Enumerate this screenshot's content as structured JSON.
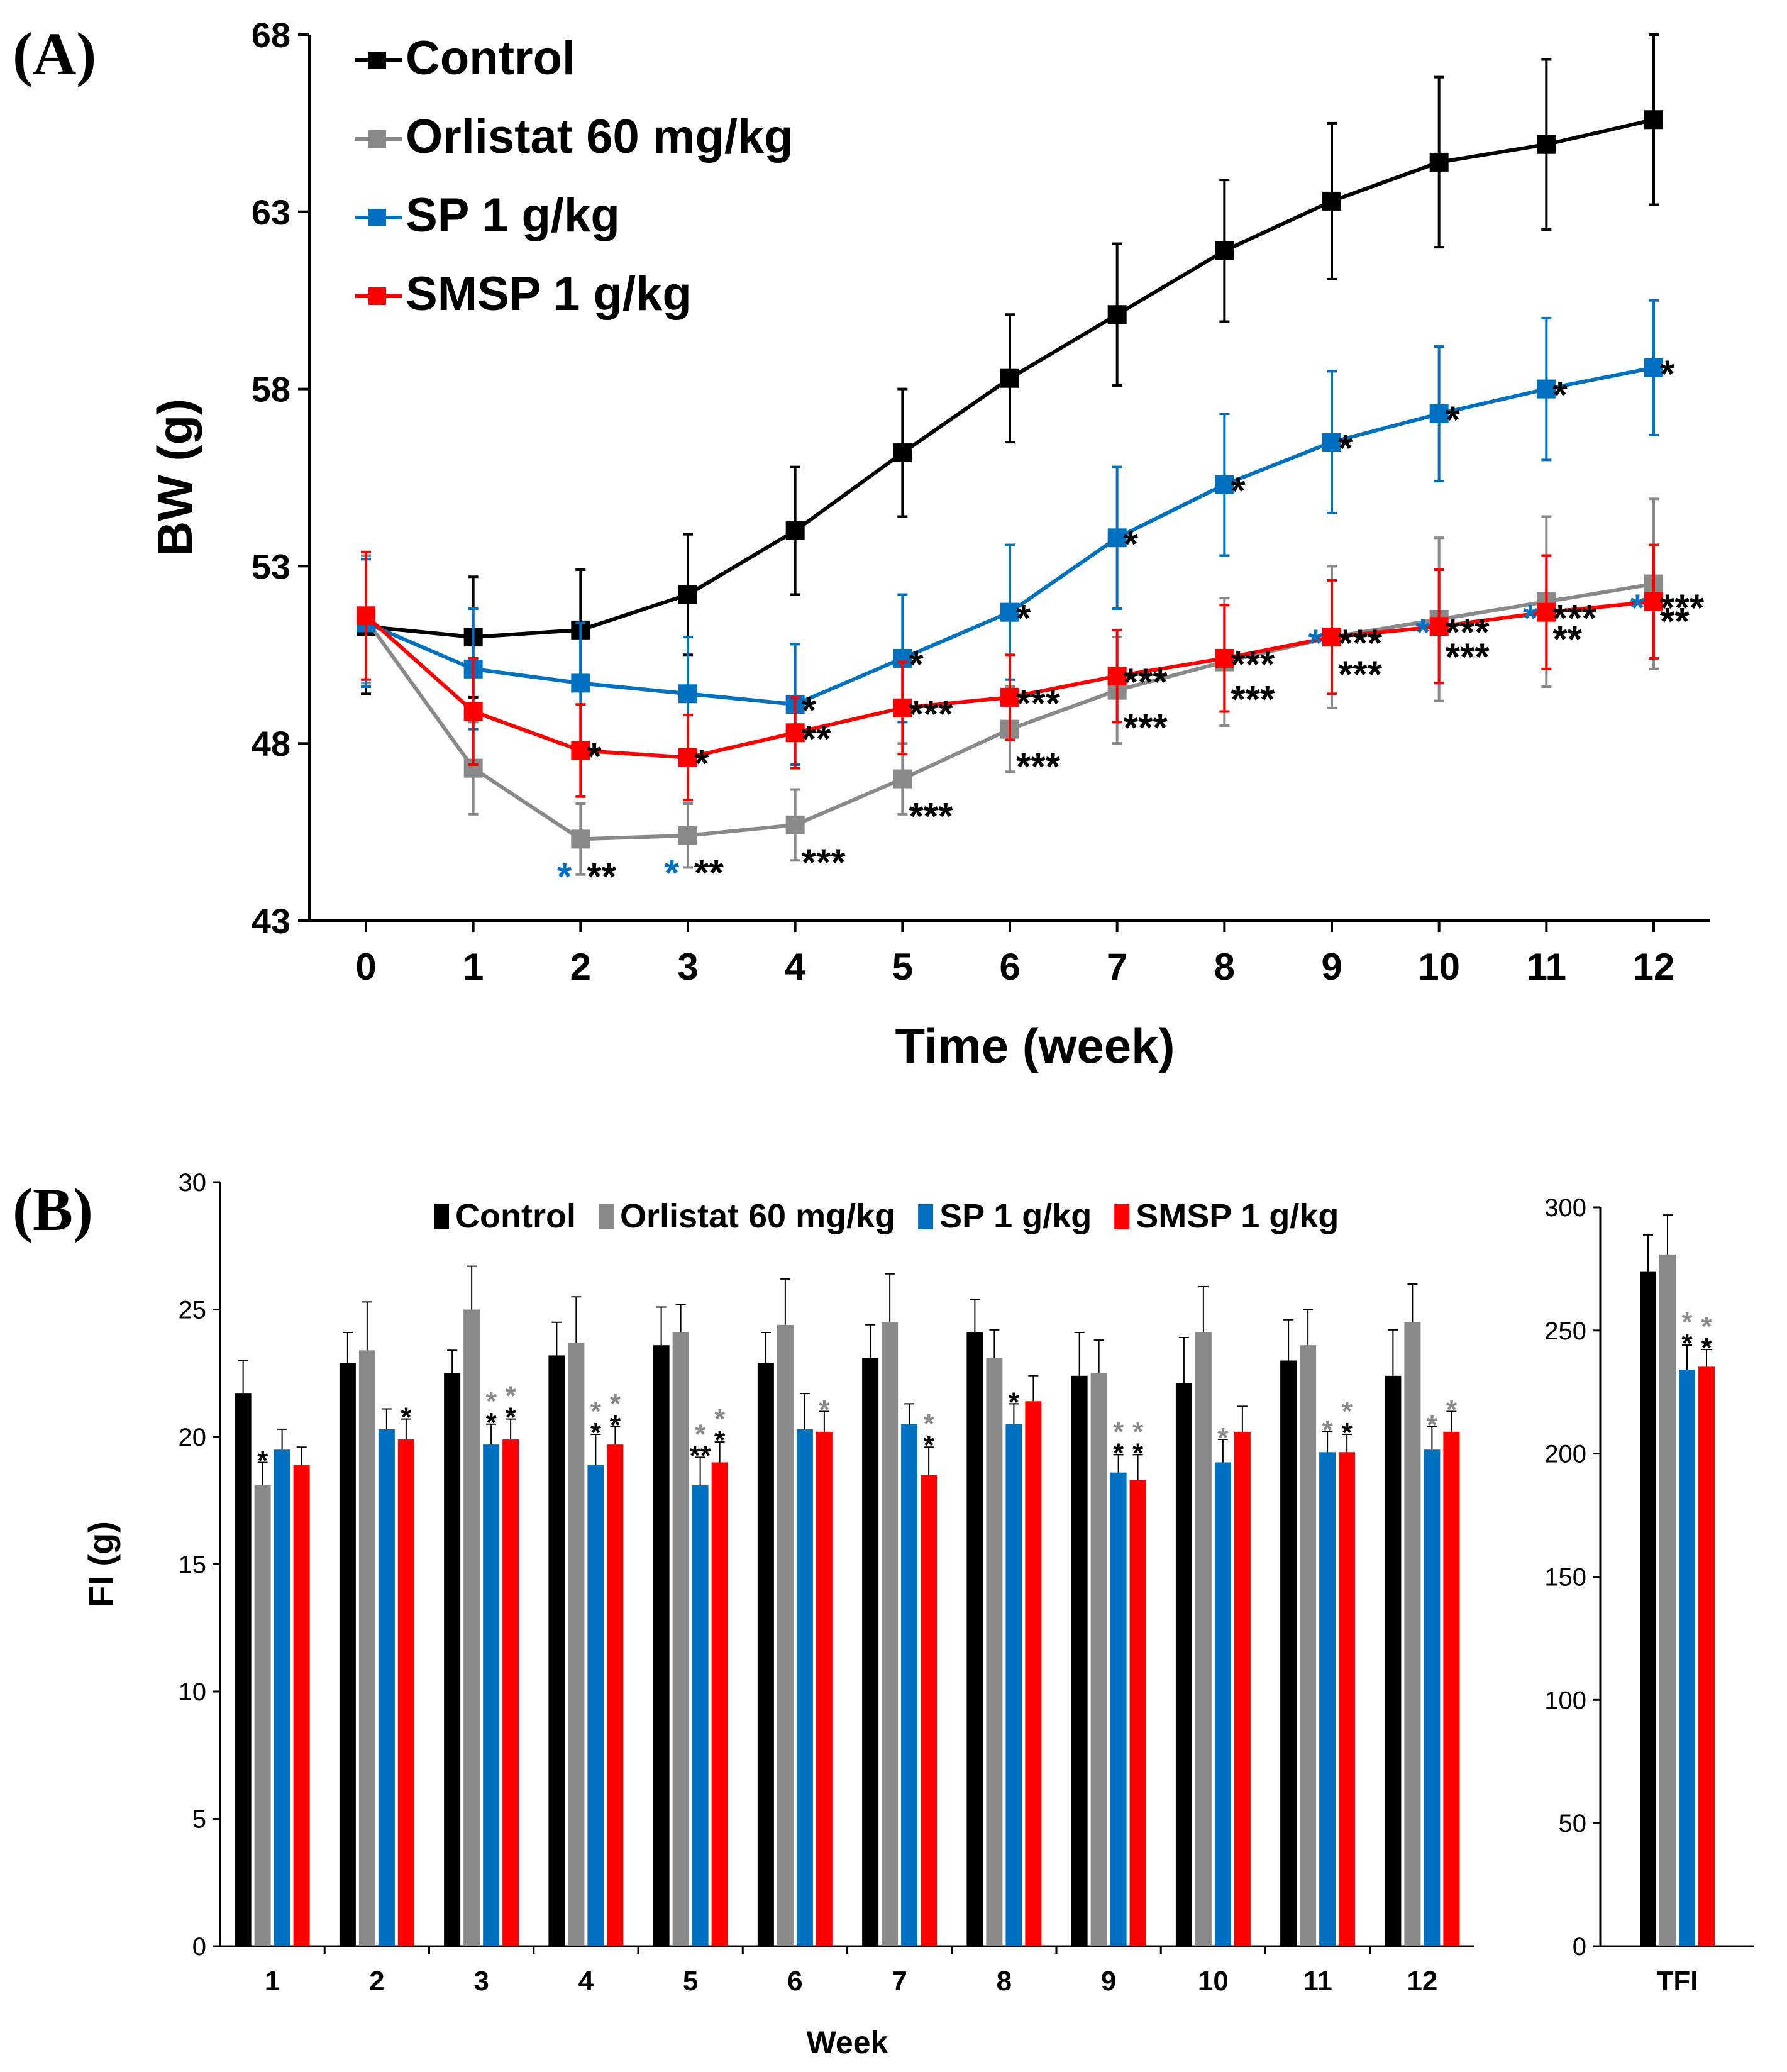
{
  "chart_data": [
    {
      "type": "line",
      "panel_label": "(A)",
      "xlabel": "Time (week)",
      "ylabel": "BW (g)",
      "ylim": [
        43,
        68
      ],
      "yticks": [
        43,
        48,
        53,
        58,
        63,
        68
      ],
      "x": [
        0,
        1,
        2,
        3,
        4,
        5,
        6,
        7,
        8,
        9,
        10,
        11,
        12
      ],
      "legend_position": "top-left",
      "series": [
        {
          "name": "Control",
          "color": "#000000",
          "values": [
            51.3,
            51.0,
            51.2,
            52.2,
            54.0,
            56.2,
            58.3,
            60.1,
            61.9,
            63.3,
            64.4,
            64.9,
            65.6
          ],
          "errors": [
            1.9,
            1.7,
            1.7,
            1.7,
            1.8,
            1.8,
            1.8,
            2.0,
            2.0,
            2.2,
            2.4,
            2.4,
            2.4
          ],
          "annotations": []
        },
        {
          "name": "Orlistat 60 mg/kg",
          "color": "#898989",
          "values": [
            51.5,
            47.3,
            45.3,
            45.4,
            45.7,
            47.0,
            48.4,
            49.5,
            50.3,
            51.0,
            51.5,
            52.0,
            52.5
          ],
          "errors": [
            1.8,
            1.3,
            1.0,
            0.9,
            1.0,
            1.0,
            1.2,
            1.5,
            1.8,
            2.0,
            2.3,
            2.4,
            2.4
          ],
          "annotations": [
            {
              "x": 2,
              "text": "**",
              "pre": "*"
            },
            {
              "x": 3,
              "text": "**",
              "pre": "*"
            },
            {
              "x": 4,
              "text": "***",
              "pre": ""
            },
            {
              "x": 5,
              "text": "***",
              "pre": ""
            },
            {
              "x": 6,
              "text": "***",
              "pre": ""
            },
            {
              "x": 7,
              "text": "***",
              "pre": ""
            },
            {
              "x": 8,
              "text": "***",
              "pre": ""
            },
            {
              "x": 9,
              "text": "***",
              "pre": ""
            },
            {
              "x": 10,
              "text": "***",
              "pre": ""
            },
            {
              "x": 11,
              "text": "**",
              "pre": ""
            },
            {
              "x": 12,
              "text": "**",
              "pre": ""
            }
          ]
        },
        {
          "name": "SP 1 g/kg",
          "color": "#0070c0",
          "values": [
            51.4,
            50.1,
            49.7,
            49.4,
            49.1,
            50.4,
            51.7,
            53.8,
            55.3,
            56.5,
            57.3,
            58.0,
            58.6
          ],
          "errors": [
            1.8,
            1.7,
            1.7,
            1.6,
            1.7,
            1.8,
            1.9,
            2.0,
            2.0,
            2.0,
            1.9,
            2.0,
            1.9
          ],
          "annotations": [
            {
              "x": 4,
              "text": "*",
              "pre": ""
            },
            {
              "x": 5,
              "text": "*",
              "pre": ""
            },
            {
              "x": 6,
              "text": "*",
              "pre": ""
            },
            {
              "x": 7,
              "text": "*",
              "pre": ""
            },
            {
              "x": 8,
              "text": "*",
              "pre": ""
            },
            {
              "x": 9,
              "text": "*",
              "pre": ""
            },
            {
              "x": 10,
              "text": "*",
              "pre": ""
            },
            {
              "x": 11,
              "text": "*",
              "pre": ""
            },
            {
              "x": 12,
              "text": "*",
              "pre": ""
            }
          ]
        },
        {
          "name": "SMSP 1 g/kg",
          "color": "#ff0000",
          "values": [
            51.6,
            48.9,
            47.8,
            47.6,
            48.3,
            49.0,
            49.3,
            49.9,
            50.4,
            51.0,
            51.3,
            51.7,
            52.0
          ],
          "errors": [
            1.8,
            1.5,
            1.3,
            1.2,
            1.0,
            1.3,
            1.2,
            1.3,
            1.5,
            1.6,
            1.6,
            1.6,
            1.6
          ],
          "annotations": [
            {
              "x": 2,
              "text": "*",
              "pre": ""
            },
            {
              "x": 3,
              "text": "*",
              "pre": ""
            },
            {
              "x": 4,
              "text": "**",
              "pre": ""
            },
            {
              "x": 5,
              "text": "***",
              "pre": ""
            },
            {
              "x": 6,
              "text": "***",
              "pre": ""
            },
            {
              "x": 7,
              "text": "***",
              "pre": ""
            },
            {
              "x": 8,
              "text": "***",
              "pre": ""
            },
            {
              "x": 9,
              "text": "***",
              "pre": "*"
            },
            {
              "x": 10,
              "text": "***",
              "pre": "*"
            },
            {
              "x": 11,
              "text": "***",
              "pre": "*"
            },
            {
              "x": 12,
              "text": "***",
              "pre": "*"
            }
          ]
        }
      ]
    },
    {
      "type": "bar",
      "panel_label": "(B)",
      "xlabel": "Week",
      "ylabel": "FI (g)",
      "ylim": [
        0,
        30
      ],
      "yticks": [
        0,
        5,
        10,
        15,
        20,
        25,
        30
      ],
      "categories": [
        "1",
        "2",
        "3",
        "4",
        "5",
        "6",
        "7",
        "8",
        "9",
        "10",
        "11",
        "12"
      ],
      "legend_position": "top",
      "series": [
        {
          "name": "Control",
          "color": "#000000",
          "values": [
            21.7,
            22.9,
            22.5,
            23.2,
            23.6,
            22.9,
            23.1,
            24.1,
            22.4,
            22.1,
            23.0,
            22.4
          ],
          "errors": [
            1.3,
            1.2,
            0.9,
            1.3,
            1.5,
            1.2,
            1.3,
            1.3,
            1.7,
            1.8,
            1.6,
            1.8
          ],
          "stars_black": [
            0,
            0,
            0,
            0,
            0,
            0,
            0,
            0,
            0,
            0,
            0,
            0
          ],
          "stars_gray": [
            0,
            0,
            0,
            0,
            0,
            0,
            0,
            0,
            0,
            0,
            0,
            0
          ]
        },
        {
          "name": "Orlistat 60 mg/kg",
          "color": "#898989",
          "values": [
            18.1,
            23.4,
            25.0,
            23.7,
            24.1,
            24.4,
            24.5,
            23.1,
            22.5,
            24.1,
            23.6,
            24.5
          ],
          "errors": [
            0.9,
            1.9,
            1.7,
            1.8,
            1.1,
            1.8,
            1.9,
            1.1,
            1.3,
            1.8,
            1.4,
            1.5
          ],
          "stars_black": [
            1,
            0,
            0,
            0,
            0,
            0,
            0,
            0,
            0,
            0,
            0,
            0
          ],
          "stars_gray": [
            0,
            0,
            0,
            0,
            0,
            0,
            0,
            0,
            0,
            0,
            0,
            0
          ]
        },
        {
          "name": "SP 1 g/kg",
          "color": "#0070c0",
          "values": [
            19.5,
            20.3,
            19.7,
            18.9,
            18.1,
            20.3,
            20.5,
            20.5,
            18.6,
            19.0,
            19.4,
            19.5
          ],
          "errors": [
            0.8,
            0.8,
            0.8,
            1.2,
            1.1,
            1.4,
            0.8,
            0.8,
            0.7,
            0.9,
            0.8,
            0.9
          ],
          "stars_black": [
            0,
            0,
            1,
            1,
            2,
            0,
            0,
            1,
            1,
            0,
            0,
            0
          ],
          "stars_gray": [
            0,
            0,
            1,
            1,
            1,
            0,
            0,
            0,
            1,
            1,
            1,
            1
          ]
        },
        {
          "name": "SMSP 1 g/kg",
          "color": "#ff0000",
          "values": [
            18.9,
            19.9,
            19.9,
            19.7,
            19.0,
            20.2,
            18.5,
            21.4,
            18.3,
            20.2,
            19.4,
            20.2
          ],
          "errors": [
            0.7,
            0.8,
            0.8,
            0.7,
            0.8,
            0.8,
            1.1,
            1.0,
            1.0,
            1.0,
            0.7,
            0.8
          ],
          "stars_black": [
            0,
            1,
            1,
            1,
            1,
            0,
            1,
            0,
            1,
            0,
            1,
            0
          ],
          "stars_gray": [
            0,
            0,
            1,
            1,
            1,
            1,
            1,
            0,
            1,
            0,
            1,
            1
          ]
        }
      ]
    },
    {
      "type": "bar",
      "ylim": [
        0,
        300
      ],
      "yticks": [
        0,
        50,
        100,
        150,
        200,
        250,
        300
      ],
      "categories": [
        "TFI"
      ],
      "series": [
        {
          "name": "Control",
          "color": "#000000",
          "values": [
            273.8
          ],
          "errors": [
            15.0
          ],
          "stars_black": [
            0
          ],
          "stars_gray": [
            0
          ]
        },
        {
          "name": "Orlistat 60 mg/kg",
          "color": "#898989",
          "values": [
            280.9
          ],
          "errors": [
            16.0
          ],
          "stars_black": [
            0
          ],
          "stars_gray": [
            0
          ]
        },
        {
          "name": "SP 1 g/kg",
          "color": "#0070c0",
          "values": [
            234.1
          ],
          "errors": [
            10.0
          ],
          "stars_black": [
            1
          ],
          "stars_gray": [
            1
          ]
        },
        {
          "name": "SMSP 1 g/kg",
          "color": "#ff0000",
          "values": [
            235.3
          ],
          "errors": [
            7.0
          ],
          "stars_black": [
            1
          ],
          "stars_gray": [
            1
          ]
        }
      ]
    }
  ]
}
